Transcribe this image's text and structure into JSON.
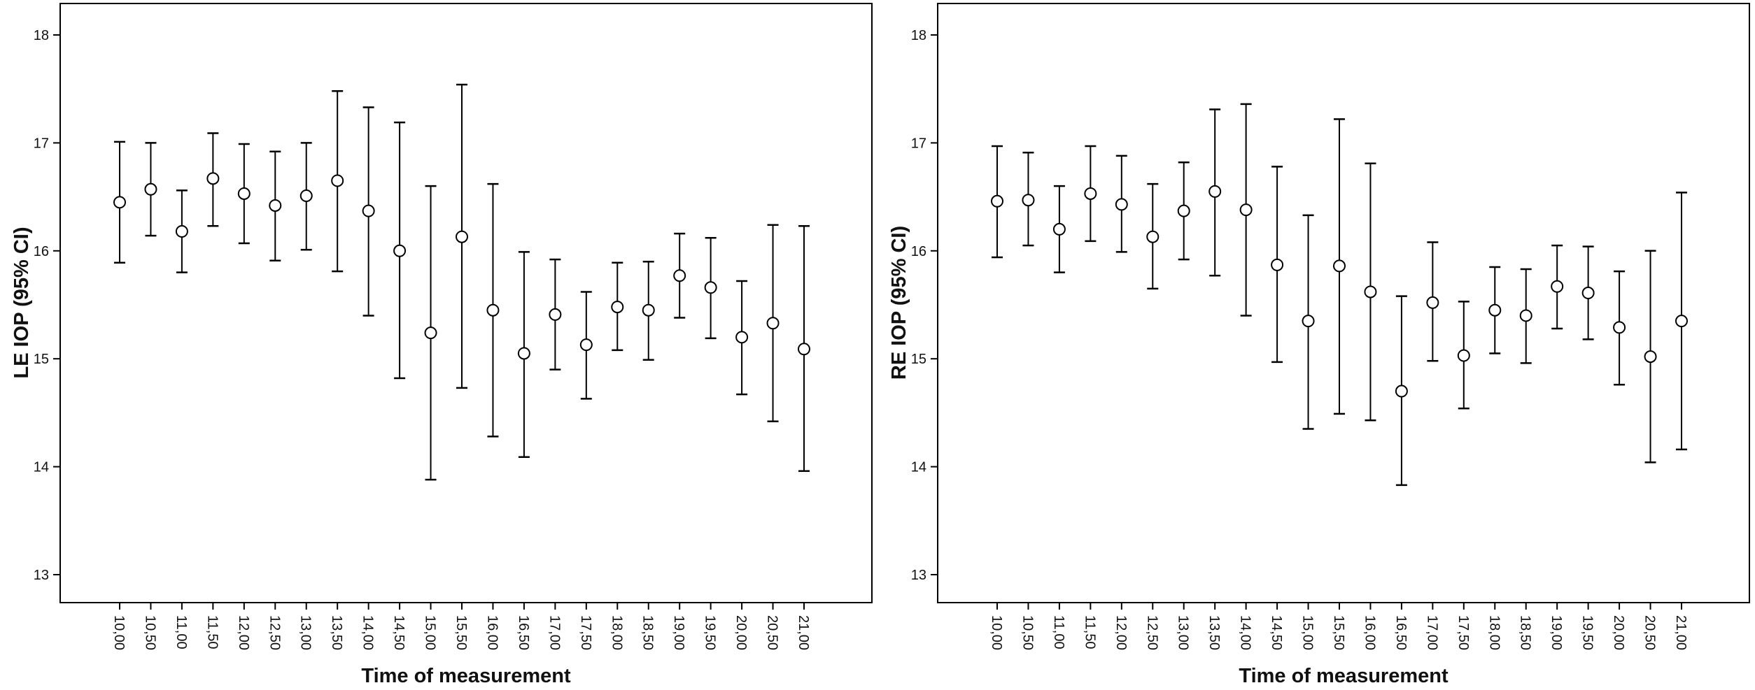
{
  "chart_data": [
    {
      "type": "errorbar",
      "title": "",
      "xlabel": "Time of measurement",
      "ylabel": "LE IOP (95% CI)",
      "ylim": [
        13,
        18
      ],
      "yticks": [
        13,
        14,
        15,
        16,
        17,
        18
      ],
      "grid": false,
      "categories": [
        "10,00",
        "10,50",
        "11,00",
        "11,50",
        "12,00",
        "12,50",
        "13,00",
        "13,50",
        "14,00",
        "14,50",
        "15,00",
        "15,50",
        "16,00",
        "16,50",
        "17,00",
        "17,50",
        "18,00",
        "18,50",
        "19,00",
        "19,50",
        "20,00",
        "20,50",
        "21,00"
      ],
      "mean": [
        16.45,
        16.57,
        16.18,
        16.67,
        16.53,
        16.42,
        16.51,
        16.65,
        16.37,
        16.0,
        15.24,
        16.13,
        15.45,
        15.05,
        15.41,
        15.13,
        15.48,
        15.45,
        15.77,
        15.66,
        15.2,
        15.33,
        15.09
      ],
      "lower": [
        15.89,
        16.14,
        15.8,
        16.23,
        16.07,
        15.91,
        16.01,
        15.81,
        15.4,
        14.82,
        13.88,
        14.73,
        14.28,
        14.09,
        14.9,
        14.63,
        15.08,
        14.99,
        15.38,
        15.19,
        14.67,
        14.42,
        13.96
      ],
      "upper": [
        17.01,
        17.0,
        16.56,
        17.09,
        16.99,
        16.92,
        17.0,
        17.48,
        17.33,
        17.19,
        16.6,
        17.54,
        16.62,
        15.99,
        15.92,
        15.62,
        15.89,
        15.9,
        16.16,
        16.12,
        15.72,
        16.24,
        16.23
      ]
    },
    {
      "type": "errorbar",
      "title": "",
      "xlabel": "Time of measurement",
      "ylabel": "RE IOP (95% CI)",
      "ylim": [
        13,
        18
      ],
      "yticks": [
        13,
        14,
        15,
        16,
        17,
        18
      ],
      "grid": false,
      "categories": [
        "10,00",
        "10,50",
        "11,00",
        "11,50",
        "12,00",
        "12,50",
        "13,00",
        "13,50",
        "14,00",
        "14,50",
        "15,00",
        "15,50",
        "16,00",
        "16,50",
        "17,00",
        "17,50",
        "18,00",
        "18,50",
        "19,00",
        "19,50",
        "20,00",
        "20,50",
        "21,00"
      ],
      "mean": [
        16.46,
        16.47,
        16.2,
        16.53,
        16.43,
        16.13,
        16.37,
        16.55,
        16.38,
        15.87,
        15.35,
        15.86,
        15.62,
        14.7,
        15.52,
        15.03,
        15.45,
        15.4,
        15.67,
        15.61,
        15.29,
        15.02,
        15.35
      ],
      "lower": [
        15.94,
        16.05,
        15.8,
        16.09,
        15.99,
        15.65,
        15.92,
        15.77,
        15.4,
        14.97,
        14.35,
        14.49,
        14.43,
        13.83,
        14.98,
        14.54,
        15.05,
        14.96,
        15.28,
        15.18,
        14.76,
        14.04,
        14.16
      ],
      "upper": [
        16.97,
        16.91,
        16.6,
        16.97,
        16.88,
        16.62,
        16.82,
        17.31,
        17.36,
        16.78,
        16.33,
        17.22,
        16.81,
        15.58,
        16.08,
        15.53,
        15.85,
        15.83,
        16.05,
        16.04,
        15.81,
        16.0,
        16.54
      ]
    }
  ]
}
